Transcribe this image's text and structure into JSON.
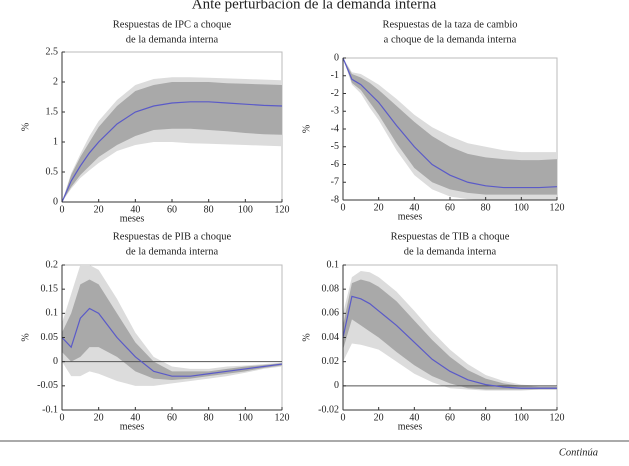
{
  "title": "Ante perturbación de la demanda interna",
  "footer": "Continúa",
  "chart_data": [
    {
      "type": "fan",
      "title": [
        "Respuestas de IPC a choque",
        "de la demanda interna"
      ],
      "xlabel": "meses",
      "ylabel": "%",
      "xlim": [
        0,
        120
      ],
      "xticks": [
        0,
        20,
        40,
        60,
        80,
        100,
        120
      ],
      "ylim": [
        0,
        2.5
      ],
      "yticks": [
        0,
        0.5,
        1,
        1.5,
        2,
        2.5
      ],
      "zero_line": false,
      "x": [
        0,
        5,
        10,
        15,
        20,
        30,
        40,
        50,
        60,
        70,
        80,
        90,
        100,
        110,
        120
      ],
      "bands": [
        {
          "color": "#dcdcdc",
          "lower": [
            0,
            0.22,
            0.4,
            0.53,
            0.65,
            0.85,
            0.95,
            1.0,
            1.0,
            0.98,
            0.97,
            0.96,
            0.95,
            0.94,
            0.93
          ],
          "upper": [
            0,
            0.48,
            0.8,
            1.1,
            1.35,
            1.7,
            1.95,
            2.05,
            2.08,
            2.08,
            2.07,
            2.06,
            2.05,
            2.04,
            2.03
          ]
        },
        {
          "color": "#a9a9a9",
          "lower": [
            0,
            0.25,
            0.45,
            0.6,
            0.75,
            0.95,
            1.1,
            1.2,
            1.22,
            1.22,
            1.2,
            1.18,
            1.15,
            1.13,
            1.12
          ],
          "upper": [
            0,
            0.45,
            0.75,
            1.0,
            1.25,
            1.6,
            1.85,
            1.95,
            2.0,
            2.0,
            2.0,
            1.98,
            1.97,
            1.96,
            1.95
          ]
        }
      ],
      "line": {
        "color": "#5a5ac8",
        "values": [
          0,
          0.35,
          0.6,
          0.82,
          1.0,
          1.3,
          1.5,
          1.6,
          1.65,
          1.67,
          1.67,
          1.65,
          1.63,
          1.61,
          1.6
        ]
      }
    },
    {
      "type": "fan",
      "title": [
        "Respuestas de la taza de cambio",
        "a choque de la demanda interna"
      ],
      "xlabel": "meses",
      "ylabel": "%",
      "xlim": [
        0,
        120
      ],
      "xticks": [
        0,
        20,
        40,
        60,
        80,
        100,
        120
      ],
      "ylim": [
        -8,
        0
      ],
      "yticks": [
        0,
        -1,
        -2,
        -3,
        -4,
        -5,
        -6,
        -7,
        -8
      ],
      "zero_line": false,
      "x": [
        0,
        5,
        10,
        15,
        20,
        30,
        40,
        50,
        60,
        70,
        80,
        90,
        100,
        110,
        120
      ],
      "bands": [
        {
          "color": "#dcdcdc",
          "lower": [
            0,
            -1.5,
            -2.0,
            -2.8,
            -3.5,
            -5.2,
            -6.6,
            -7.4,
            -7.8,
            -7.95,
            -8,
            -8,
            -8,
            -8,
            -8
          ],
          "upper": [
            0,
            -0.8,
            -0.9,
            -1.2,
            -1.5,
            -2.3,
            -3.2,
            -3.9,
            -4.4,
            -4.8,
            -5.0,
            -5.2,
            -5.3,
            -5.3,
            -5.3
          ]
        },
        {
          "color": "#a9a9a9",
          "lower": [
            0,
            -1.4,
            -1.8,
            -2.5,
            -3.2,
            -4.8,
            -6.2,
            -7.0,
            -7.4,
            -7.6,
            -7.7,
            -7.7,
            -7.7,
            -7.7,
            -7.7
          ],
          "upper": [
            0,
            -0.9,
            -1.1,
            -1.4,
            -1.8,
            -2.7,
            -3.6,
            -4.4,
            -5.0,
            -5.4,
            -5.6,
            -5.7,
            -5.75,
            -5.75,
            -5.7
          ]
        }
      ],
      "line": {
        "color": "#5a5ac8",
        "values": [
          0,
          -1.2,
          -1.5,
          -2.0,
          -2.5,
          -3.8,
          -5.0,
          -6.0,
          -6.6,
          -7.0,
          -7.2,
          -7.3,
          -7.3,
          -7.3,
          -7.25
        ]
      }
    },
    {
      "type": "fan",
      "title": [
        "Respuestas de PIB a choque",
        "de la demanda interna"
      ],
      "xlabel": "meses",
      "ylabel": "%",
      "xlim": [
        0,
        120
      ],
      "xticks": [
        0,
        20,
        40,
        60,
        80,
        100,
        120
      ],
      "ylim": [
        -0.1,
        0.2
      ],
      "yticks": [
        -0.1,
        -0.05,
        0,
        0.05,
        0.1,
        0.15,
        0.2
      ],
      "zero_line": true,
      "x": [
        0,
        5,
        10,
        15,
        20,
        30,
        40,
        50,
        60,
        70,
        80,
        90,
        100,
        110,
        120
      ],
      "bands": [
        {
          "color": "#dcdcdc",
          "lower": [
            0.0,
            -0.03,
            -0.03,
            -0.02,
            -0.025,
            -0.04,
            -0.05,
            -0.05,
            -0.045,
            -0.04,
            -0.035,
            -0.03,
            -0.023,
            -0.015,
            -0.01
          ],
          "upper": [
            0.08,
            0.14,
            0.2,
            0.2,
            0.19,
            0.13,
            0.06,
            0.01,
            -0.01,
            -0.015,
            -0.015,
            -0.01,
            -0.008,
            -0.005,
            -0.002
          ]
        },
        {
          "color": "#a9a9a9",
          "lower": [
            0.02,
            0.0,
            0.01,
            0.03,
            0.03,
            0.01,
            -0.02,
            -0.035,
            -0.038,
            -0.035,
            -0.03,
            -0.025,
            -0.02,
            -0.013,
            -0.008
          ],
          "upper": [
            0.06,
            0.1,
            0.16,
            0.17,
            0.16,
            0.1,
            0.04,
            0.0,
            -0.02,
            -0.02,
            -0.02,
            -0.015,
            -0.01,
            -0.007,
            -0.003
          ]
        }
      ],
      "line": {
        "color": "#5a5ac8",
        "values": [
          0.05,
          0.03,
          0.09,
          0.11,
          0.1,
          0.05,
          0.01,
          -0.02,
          -0.03,
          -0.03,
          -0.025,
          -0.02,
          -0.015,
          -0.01,
          -0.005
        ]
      }
    },
    {
      "type": "fan",
      "title": [
        "Respuestas de TIB a choque",
        "de la demanda interna"
      ],
      "xlabel": "meses",
      "ylabel": "%",
      "xlim": [
        0,
        120
      ],
      "xticks": [
        0,
        20,
        40,
        60,
        80,
        100,
        120
      ],
      "ylim": [
        -0.02,
        0.1
      ],
      "yticks": [
        -0.02,
        0,
        0.02,
        0.04,
        0.06,
        0.08,
        0.1
      ],
      "zero_line": true,
      "x": [
        0,
        5,
        10,
        15,
        20,
        30,
        40,
        50,
        60,
        70,
        80,
        90,
        100,
        110,
        120
      ],
      "bands": [
        {
          "color": "#dcdcdc",
          "lower": [
            0.02,
            0.035,
            0.034,
            0.032,
            0.03,
            0.02,
            0.01,
            0.003,
            -0.002,
            -0.003,
            -0.004,
            -0.004,
            -0.004,
            -0.003,
            -0.003
          ],
          "upper": [
            0.06,
            0.09,
            0.095,
            0.094,
            0.09,
            0.078,
            0.062,
            0.045,
            0.03,
            0.018,
            0.009,
            0.004,
            0.001,
            0.0,
            0.0
          ]
        },
        {
          "color": "#a9a9a9",
          "lower": [
            0.03,
            0.055,
            0.05,
            0.045,
            0.04,
            0.028,
            0.017,
            0.008,
            0.002,
            -0.002,
            -0.003,
            -0.003,
            -0.003,
            -0.003,
            -0.003
          ],
          "upper": [
            0.05,
            0.085,
            0.088,
            0.086,
            0.082,
            0.07,
            0.054,
            0.038,
            0.024,
            0.013,
            0.006,
            0.002,
            0.0,
            -0.001,
            -0.001
          ]
        }
      ],
      "line": {
        "color": "#5a5ac8",
        "values": [
          0.04,
          0.074,
          0.072,
          0.068,
          0.062,
          0.05,
          0.036,
          0.022,
          0.012,
          0.005,
          0.001,
          -0.001,
          -0.002,
          -0.002,
          -0.002
        ]
      }
    }
  ]
}
